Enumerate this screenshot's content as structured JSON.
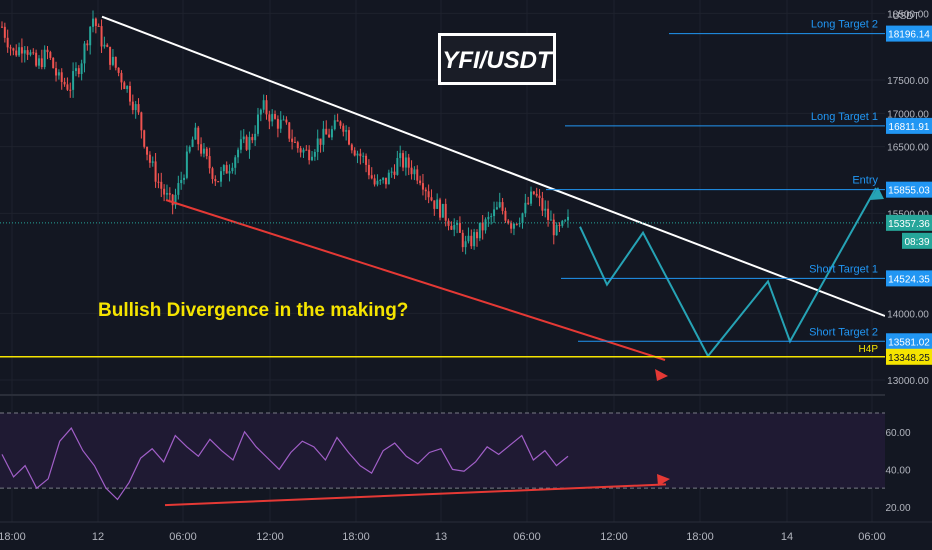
{
  "symbol": "YFI/USDT",
  "currency": "USDT",
  "annotation": "Bullish Divergence in the making?",
  "price_axis": {
    "ticks": [
      {
        "value": 18500,
        "label": "18500.00"
      },
      {
        "value": 17500,
        "label": "17500.00"
      },
      {
        "value": 17000,
        "label": "17000.00"
      },
      {
        "value": 16500,
        "label": "16500.00"
      },
      {
        "value": 15500,
        "label": "15500.00"
      },
      {
        "value": 14000,
        "label": "14000.00"
      },
      {
        "value": 13000,
        "label": "13000.00"
      }
    ]
  },
  "levels": [
    {
      "name": "Long Target 2",
      "label": "Long Target 2",
      "price": 18196.14,
      "price_label": "18196.14",
      "color": "#2196f3"
    },
    {
      "name": "Long Target 1",
      "label": "Long Target 1",
      "price": 16811.91,
      "price_label": "16811.91",
      "color": "#2196f3"
    },
    {
      "name": "Entry",
      "label": "Entry",
      "price": 15855.03,
      "price_label": "15855.03",
      "color": "#2196f3"
    },
    {
      "name": "Short Target 1",
      "label": "Short Target 1",
      "price": 14524.35,
      "price_label": "14524.35",
      "color": "#2196f3"
    },
    {
      "name": "Short Target 2",
      "label": "Short Target 2",
      "price": 13581.02,
      "price_label": "13581.02",
      "color": "#2196f3"
    }
  ],
  "h4_level": {
    "label": "H4P",
    "price": 13348.25,
    "price_label": "13348.25",
    "color": "#f5e400"
  },
  "last_price": {
    "price": 15357.36,
    "price_label": "15357.36",
    "countdown": "08:39",
    "color": "#26a69a"
  },
  "rsi_axis": {
    "ticks": [
      {
        "value": 60,
        "label": "60.00"
      },
      {
        "value": 40,
        "label": "40.00"
      },
      {
        "value": 20,
        "label": "20.00"
      }
    ],
    "upper_band": 70,
    "lower_band": 30
  },
  "time_axis": {
    "labels": [
      "18:00",
      "12",
      "06:00",
      "12:00",
      "18:00",
      "13",
      "06:00",
      "12:00",
      "18:00",
      "14",
      "06:00"
    ]
  },
  "colors": {
    "background": "#131722",
    "up": "#26a69a",
    "down": "#ef5350",
    "trendline": "#ffffff",
    "divergence": "#e53935",
    "projection": "#26a3b5",
    "rsi": "#a15fc8",
    "annotation": "#f5e400"
  },
  "chart_data": {
    "type": "candlestick",
    "title": "YFI/USDT",
    "y_unit": "USDT",
    "ylim": [
      12820,
      18700
    ],
    "candle_seed": [
      18300,
      17900,
      18050,
      17700,
      17900,
      17500,
      17400,
      17800,
      18450,
      18000,
      17700,
      17400,
      17000,
      16300,
      15900,
      15600,
      16100,
      16700,
      16300,
      16000,
      16200,
      16500,
      16600,
      17100,
      16900,
      16800,
      16500,
      16400,
      16600,
      16700,
      16900,
      16500,
      16300,
      15900,
      16000,
      16300,
      16200,
      16050,
      15700,
      15500,
      15300,
      15000,
      15200,
      15400,
      15600,
      15350,
      15500,
      15800,
      15500,
      15200,
      15357
    ],
    "projection_path": [
      [
        15500,
        15300
      ],
      [
        15600,
        14500
      ],
      [
        15700,
        15200
      ],
      [
        15800,
        13300
      ],
      [
        15900,
        14500
      ],
      [
        16000,
        13600
      ],
      [
        16100,
        15900
      ]
    ],
    "rsi": {
      "ylim": [
        12,
        78
      ],
      "series": [
        48,
        36,
        42,
        30,
        35,
        55,
        62,
        50,
        42,
        30,
        24,
        33,
        46,
        51,
        44,
        58,
        52,
        47,
        56,
        50,
        45,
        60,
        52,
        46,
        40,
        49,
        55,
        52,
        45,
        57,
        49,
        42,
        38,
        50,
        54,
        47,
        43,
        49,
        51,
        40,
        39,
        44,
        52,
        48,
        53,
        58,
        45,
        50,
        42,
        47
      ]
    }
  }
}
